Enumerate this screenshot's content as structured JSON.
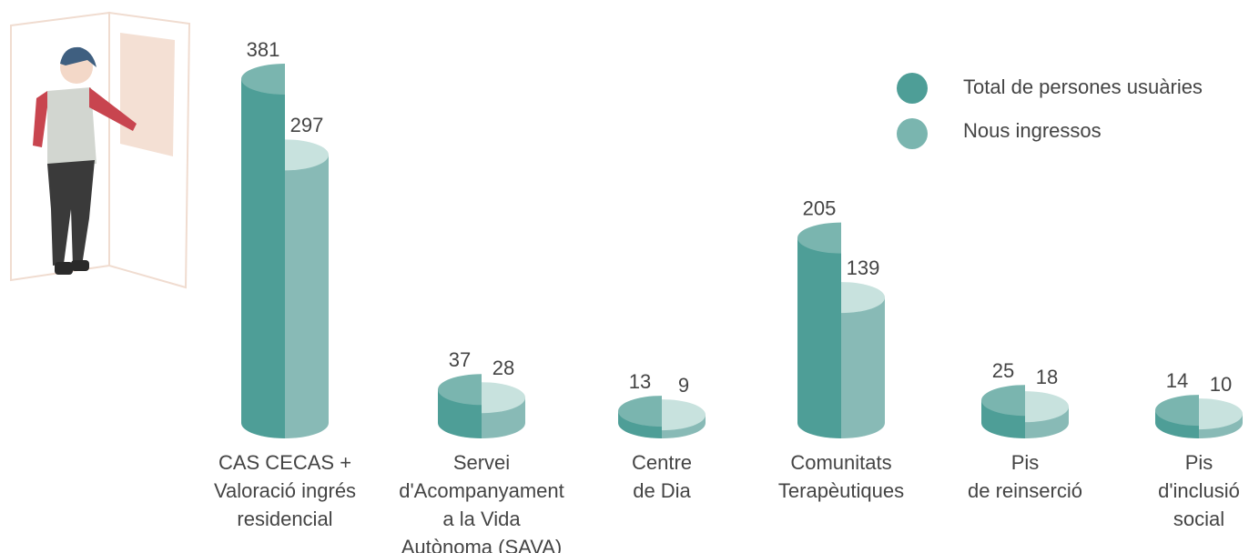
{
  "chart_data": {
    "type": "bar",
    "categories": [
      [
        "CAS CECAS +",
        "Valoració ingrés",
        "residencial"
      ],
      [
        "Servei",
        "d'Acompanyament",
        "a la Vida",
        "Autònoma (SAVA)"
      ],
      [
        "Centre",
        "de Dia"
      ],
      [
        "Comunitats",
        "Terapèutiques"
      ],
      [
        "Pis",
        "de reinserció"
      ],
      [
        "Pis",
        "d'inclusió",
        "social"
      ]
    ],
    "series": [
      {
        "name": "Total de persones usuàries",
        "color": "#4e9e97",
        "values": [
          381,
          37,
          13,
          205,
          25,
          14
        ]
      },
      {
        "name": "Nous ingressos",
        "color": "#88bab6",
        "values": [
          297,
          28,
          9,
          139,
          18,
          10
        ]
      }
    ]
  }
}
